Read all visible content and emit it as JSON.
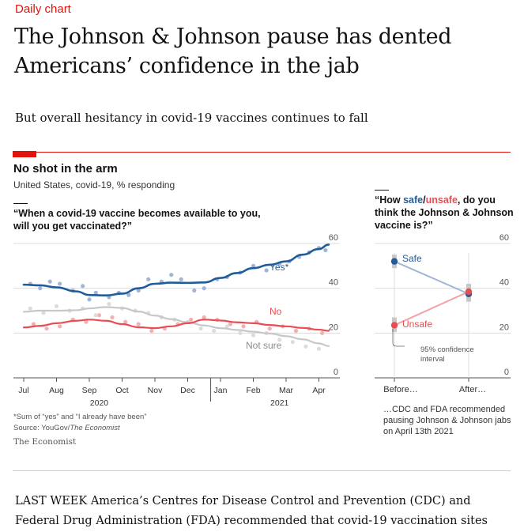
{
  "page": {
    "kicker": "Daily chart",
    "headline": "The Johnson & Johnson pause has dented Americans’ confidence in the jab",
    "subhead": "But overall hesitancy in covid-19 vaccines continues to fall",
    "body_text": "LAST WEEK America’s Centres for Disease Control and Prevention (CDC) and Federal Drug Administration (FDA) recommended that covid-19 vaccination sites"
  },
  "figure": {
    "title": "No shot in the arm",
    "subtitle": "United States, covid-19, % responding",
    "left_question": "“When a covid-19 vaccine becomes available to you, will you get vaccinated?”",
    "right_question_prefix": "“How ",
    "right_question_safe": "safe",
    "right_question_slash": "/",
    "right_question_unsafe": "unsafe",
    "right_question_suffix": ", do you think the Johnson & Johnson vaccine is?”",
    "footnote": "*Sum of “yes” and “I already have been”",
    "source_prefix": "Source: YouGov/",
    "source_italic": "The Economist",
    "brand": "The Economist",
    "right_note": "…CDC and FDA recommended pausing Johnson & Johnson jabs on April 13th 2021",
    "ci_label": "95% confidence interval"
  },
  "colors": {
    "accent_red": "#e3120b",
    "yes_line": "#1f5c99",
    "yes_dots": "#9fb6da",
    "no_line": "#e64e53",
    "no_dots": "#f2b0b1",
    "notsure_line": "#c7c7c7",
    "notsure_dots": "#dcdcdc",
    "grid": "#dcdcdc",
    "ci_band": "#c8c8c8"
  },
  "chart_data": [
    {
      "type": "line",
      "x_tick_labels": [
        "Jul",
        "Aug",
        "Sep",
        "Oct",
        "Nov",
        "Dec",
        "Jan",
        "Feb",
        "Mar",
        "Apr"
      ],
      "x_year_labels": [
        "2020",
        "2021"
      ],
      "ylim": [
        0,
        60
      ],
      "yticks": [
        "0",
        "20",
        "40",
        "60"
      ],
      "grid": true,
      "series": [
        {
          "name": "Yes*",
          "color": "yes_line",
          "trend_t": [
            0,
            0.5,
            1.0,
            1.6,
            2.0,
            2.5,
            3.0,
            3.5,
            4.0,
            4.5,
            5.0,
            5.5,
            6.0,
            6.5,
            7.0,
            7.5,
            8.0,
            8.5,
            9.0,
            9.3
          ],
          "trend_y": [
            41.6,
            41.3,
            40.4,
            38.6,
            37.0,
            36.8,
            37.6,
            40.0,
            42.0,
            42.5,
            42.4,
            42.6,
            44.6,
            46.8,
            49.0,
            50.5,
            52.0,
            55.0,
            57.5,
            59.5
          ],
          "points_t": [
            0.2,
            0.5,
            0.8,
            1.1,
            1.5,
            1.8,
            2.0,
            2.2,
            2.6,
            2.9,
            3.2,
            3.5,
            3.8,
            4.2,
            4.5,
            4.8,
            5.2,
            5.5,
            5.9,
            6.2,
            6.6,
            7.0,
            7.4,
            7.8,
            8.1,
            8.4,
            8.7,
            9.0,
            9.2
          ],
          "points_y": [
            42,
            40,
            43,
            42,
            39,
            41,
            35,
            38,
            36,
            38,
            37,
            39,
            44,
            43,
            46,
            44,
            39,
            40,
            44,
            45,
            47,
            50,
            48,
            51,
            52,
            54,
            56,
            58,
            57
          ]
        },
        {
          "name": "No",
          "color": "no_line",
          "trend_t": [
            0,
            0.5,
            1.0,
            1.6,
            2.0,
            2.5,
            3.0,
            3.5,
            4.0,
            4.5,
            5.0,
            5.5,
            6.0,
            6.5,
            7.0,
            7.5,
            8.0,
            8.5,
            9.0,
            9.3
          ],
          "trend_y": [
            22.5,
            23.2,
            24.4,
            25.5,
            26.0,
            25.5,
            24.0,
            22.6,
            22.2,
            23.0,
            24.4,
            26.0,
            25.6,
            24.8,
            24.4,
            23.6,
            23.0,
            22.3,
            21.5,
            21.0
          ],
          "points_t": [
            0.3,
            0.7,
            1.1,
            1.5,
            1.9,
            2.3,
            2.7,
            3.1,
            3.5,
            3.9,
            4.3,
            4.7,
            5.1,
            5.5,
            5.9,
            6.3,
            6.7,
            7.1,
            7.5,
            7.9,
            8.3,
            8.7,
            9.1
          ],
          "points_y": [
            24,
            22,
            23,
            26,
            25,
            28,
            27,
            25,
            24,
            21,
            22,
            24,
            26,
            27,
            26,
            24,
            23,
            25,
            22,
            23,
            21,
            22,
            20
          ]
        },
        {
          "name": "Not sure",
          "color": "notsure_line",
          "trend_t": [
            0,
            0.5,
            1.0,
            1.6,
            2.0,
            2.5,
            3.0,
            3.5,
            4.0,
            4.5,
            5.0,
            5.5,
            6.0,
            6.5,
            7.0,
            7.5,
            8.0,
            8.5,
            9.0,
            9.3
          ],
          "trend_y": [
            29.5,
            30.0,
            30.0,
            30.2,
            31.0,
            31.6,
            31.2,
            29.6,
            27.8,
            26.2,
            24.8,
            23.4,
            22.2,
            21.4,
            20.6,
            19.8,
            18.6,
            17.2,
            15.4,
            14.2
          ],
          "points_t": [
            0.2,
            0.6,
            1.0,
            1.4,
            1.8,
            2.2,
            2.6,
            3.0,
            3.4,
            3.8,
            4.2,
            4.6,
            5.0,
            5.4,
            5.8,
            6.2,
            6.6,
            7.0,
            7.4,
            7.8,
            8.2,
            8.6,
            9.0
          ],
          "points_y": [
            31,
            29,
            32,
            30,
            31,
            28,
            33,
            31,
            30,
            29,
            27,
            26,
            25,
            22,
            21,
            23,
            20,
            19,
            20,
            17,
            16,
            14,
            13
          ]
        }
      ]
    },
    {
      "type": "line",
      "categories": [
        "Before…",
        "After…"
      ],
      "ylim": [
        0,
        60
      ],
      "yticks": [
        "0",
        "20",
        "40",
        "60"
      ],
      "series": [
        {
          "name": "Safe",
          "color": "yes_line",
          "values": [
            52,
            37.5
          ],
          "ci": [
            [
              49,
              55
            ],
            [
              34,
              41
            ]
          ]
        },
        {
          "name": "Unsafe",
          "color": "no_line",
          "values": [
            23.5,
            38.5
          ],
          "ci": [
            [
              20.5,
              27
            ],
            [
              35,
              42
            ]
          ]
        }
      ]
    }
  ]
}
